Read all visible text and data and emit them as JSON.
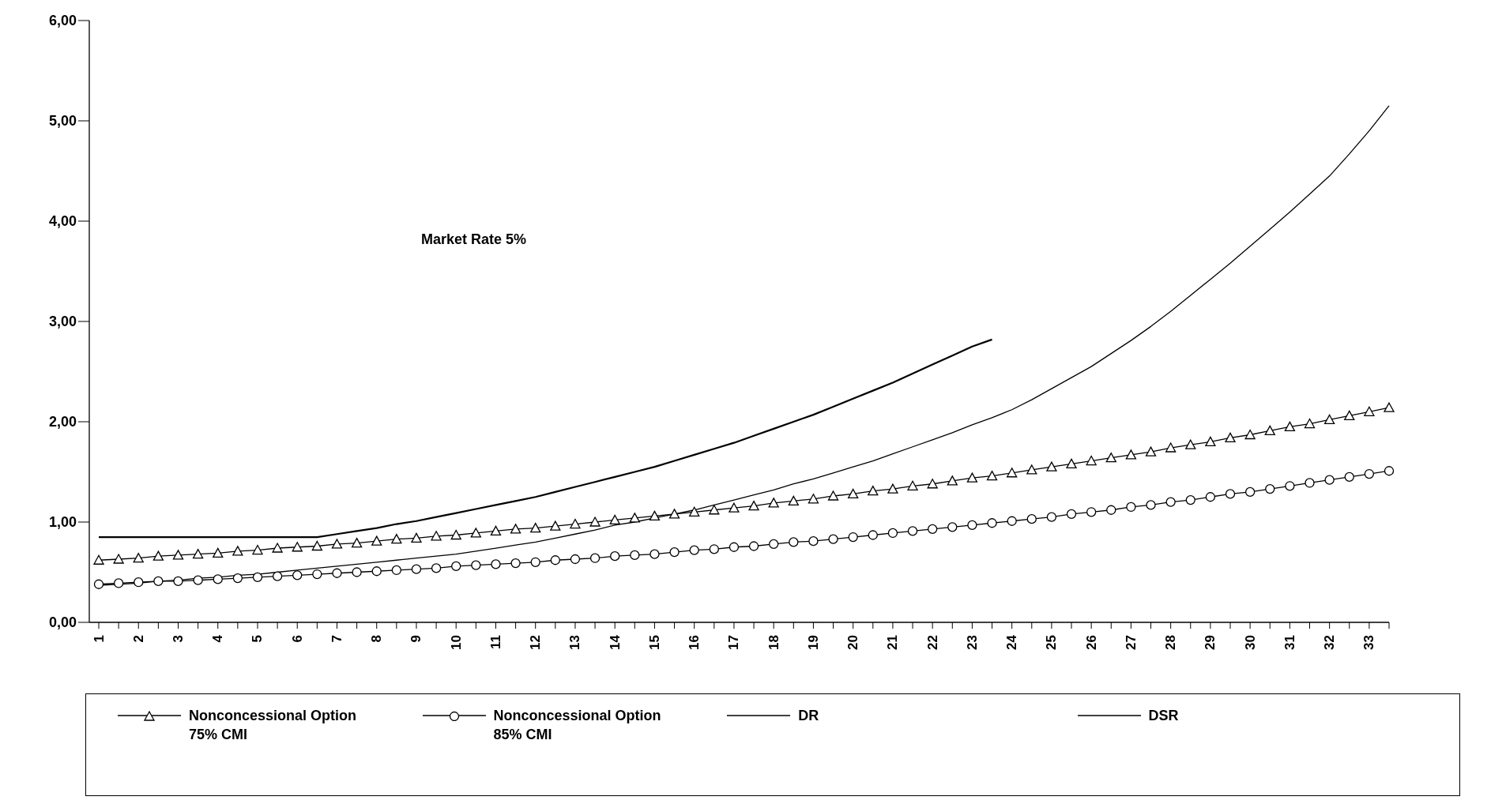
{
  "chart_data": {
    "type": "line",
    "annotations": [
      "Market Rate 5%"
    ],
    "categories": [
      "1",
      null,
      "2",
      null,
      "3",
      null,
      "4",
      null,
      "5",
      null,
      "6",
      null,
      "7",
      null,
      "8",
      null,
      "9",
      null,
      "10",
      null,
      "11",
      null,
      "12",
      null,
      "13",
      null,
      "14",
      null,
      "15",
      null,
      "16",
      null,
      "17",
      null,
      "18",
      null,
      "19",
      null,
      "20",
      null,
      "21",
      null,
      "22",
      null,
      "23",
      null,
      "24",
      null,
      "25",
      null,
      "26",
      null,
      "27",
      null,
      "28",
      null,
      "29",
      null,
      "30",
      null,
      "31",
      null,
      "32",
      null,
      "33",
      null
    ],
    "ylim": [
      0,
      6
    ],
    "yticks": [
      {
        "value": 0,
        "label": "0,00"
      },
      {
        "value": 1,
        "label": "1,00"
      },
      {
        "value": 2,
        "label": "2,00"
      },
      {
        "value": 3,
        "label": "3,00"
      },
      {
        "value": 4,
        "label": "4,00"
      },
      {
        "value": 5,
        "label": "5,00"
      },
      {
        "value": 6,
        "label": "6,00"
      }
    ],
    "grid": false,
    "legend": "bottom",
    "line_style": "solid",
    "series": [
      {
        "name": "Nonconcessional Option 75% CMI",
        "color": "#000000",
        "marker": "triangle",
        "values": [
          0.62,
          0.63,
          0.64,
          0.66,
          0.67,
          0.68,
          0.69,
          0.71,
          0.72,
          0.74,
          0.75,
          0.76,
          0.78,
          0.79,
          0.81,
          0.83,
          0.84,
          0.86,
          0.87,
          0.89,
          0.91,
          0.93,
          0.94,
          0.96,
          0.98,
          1.0,
          1.02,
          1.04,
          1.06,
          1.08,
          1.1,
          1.12,
          1.14,
          1.16,
          1.19,
          1.21,
          1.23,
          1.26,
          1.28,
          1.31,
          1.33,
          1.36,
          1.38,
          1.41,
          1.44,
          1.46,
          1.49,
          1.52,
          1.55,
          1.58,
          1.61,
          1.64,
          1.67,
          1.7,
          1.74,
          1.77,
          1.8,
          1.84,
          1.87,
          1.91,
          1.95,
          1.98,
          2.02,
          2.06,
          2.1,
          2.14
        ]
      },
      {
        "name": "Nonconcessional Option 85% CMI",
        "color": "#000000",
        "marker": "circle",
        "values": [
          0.38,
          0.39,
          0.4,
          0.41,
          0.41,
          0.42,
          0.43,
          0.44,
          0.45,
          0.46,
          0.47,
          0.48,
          0.49,
          0.5,
          0.51,
          0.52,
          0.53,
          0.54,
          0.56,
          0.57,
          0.58,
          0.59,
          0.6,
          0.62,
          0.63,
          0.64,
          0.66,
          0.67,
          0.68,
          0.7,
          0.72,
          0.73,
          0.75,
          0.76,
          0.78,
          0.8,
          0.81,
          0.83,
          0.85,
          0.87,
          0.89,
          0.91,
          0.93,
          0.95,
          0.97,
          0.99,
          1.01,
          1.03,
          1.05,
          1.08,
          1.1,
          1.12,
          1.15,
          1.17,
          1.2,
          1.22,
          1.25,
          1.28,
          1.3,
          1.33,
          1.36,
          1.39,
          1.42,
          1.45,
          1.48,
          1.51
        ]
      },
      {
        "name": "DR",
        "color": "#000000",
        "marker": "none",
        "values": [
          0.85,
          0.85,
          0.85,
          0.85,
          0.85,
          0.85,
          0.85,
          0.85,
          0.85,
          0.85,
          0.85,
          0.85,
          0.88,
          0.91,
          0.94,
          0.98,
          1.01,
          1.05,
          1.09,
          1.13,
          1.17,
          1.21,
          1.25,
          1.3,
          1.35,
          1.4,
          1.45,
          1.5,
          1.55,
          1.61,
          1.67,
          1.73,
          1.79,
          1.86,
          1.93,
          2.0,
          2.07,
          2.15,
          2.23,
          2.31,
          2.39,
          2.48,
          2.57,
          2.66,
          2.75,
          2.82,
          null,
          null,
          null,
          null,
          null,
          null,
          null,
          null,
          null,
          null,
          null,
          null,
          null,
          null,
          null,
          null,
          null,
          null,
          null,
          null
        ]
      },
      {
        "name": "DSR",
        "color": "#000000",
        "marker": "none",
        "values": [
          0.37,
          0.38,
          0.39,
          0.41,
          0.42,
          0.44,
          0.45,
          0.47,
          0.48,
          0.5,
          0.52,
          0.54,
          0.56,
          0.58,
          0.6,
          0.62,
          0.64,
          0.66,
          0.68,
          0.71,
          0.74,
          0.77,
          0.8,
          0.84,
          0.88,
          0.92,
          0.97,
          1.0,
          1.04,
          1.08,
          1.12,
          1.17,
          1.22,
          1.27,
          1.32,
          1.38,
          1.43,
          1.49,
          1.55,
          1.61,
          1.68,
          1.75,
          1.82,
          1.89,
          1.97,
          2.04,
          2.12,
          2.22,
          2.33,
          2.44,
          2.55,
          2.68,
          2.81,
          2.95,
          3.1,
          3.26,
          3.42,
          3.58,
          3.75,
          3.92,
          4.09,
          4.27,
          4.45,
          4.67,
          4.9,
          5.15
        ]
      }
    ]
  }
}
